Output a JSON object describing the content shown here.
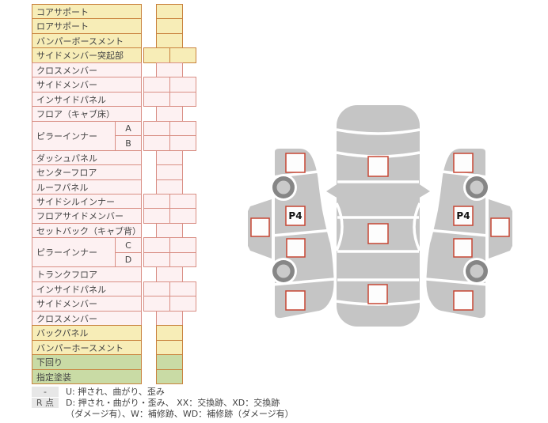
{
  "table": {
    "rows": [
      {
        "label": "コアサポート",
        "tone": "yellow",
        "cells": 1
      },
      {
        "label": "ロアサポート",
        "tone": "yellow",
        "cells": 1
      },
      {
        "label": "バンパーボースメント",
        "tone": "yellow",
        "cells": 1
      },
      {
        "label": "サイドメンバー突起部",
        "tone": "yellow",
        "cells": 2
      },
      {
        "label": "クロスメンバー",
        "tone": "pink",
        "cells": 1
      },
      {
        "label": "サイドメンバー",
        "tone": "pink",
        "cells": 2
      },
      {
        "label": "インサイドパネル",
        "tone": "pink",
        "cells": 2
      },
      {
        "label": "フロア（キャブ床）",
        "tone": "pink",
        "cells": 1
      },
      {
        "label": "ピラーインナー",
        "tone": "pink",
        "cells": 2,
        "sub": "A",
        "group": "start"
      },
      {
        "label": "",
        "tone": "pink",
        "cells": 2,
        "sub": "B",
        "group": "end"
      },
      {
        "label": "ダッシュパネル",
        "tone": "pink",
        "cells": 1
      },
      {
        "label": "センターフロア",
        "tone": "pink",
        "cells": 1
      },
      {
        "label": "ルーフパネル",
        "tone": "pink",
        "cells": 1
      },
      {
        "label": "サイドシルインナー",
        "tone": "pink",
        "cells": 2
      },
      {
        "label": "フロアサイドメンバー",
        "tone": "pink",
        "cells": 2
      },
      {
        "label": "セットバック（キャブ背）",
        "tone": "pink",
        "cells": 1
      },
      {
        "label": "ピラーインナー",
        "tone": "pink",
        "cells": 2,
        "sub": "C",
        "group": "start"
      },
      {
        "label": "",
        "tone": "pink",
        "cells": 2,
        "sub": "D",
        "group": "end"
      },
      {
        "label": "トランクフロア",
        "tone": "pink",
        "cells": 1
      },
      {
        "label": "インサイドパネル",
        "tone": "pink",
        "cells": 2
      },
      {
        "label": "サイドメンバー",
        "tone": "pink",
        "cells": 2
      },
      {
        "label": "クロスメンバー",
        "tone": "pink",
        "cells": 1
      },
      {
        "label": "バックパネル",
        "tone": "yellow",
        "cells": 1
      },
      {
        "label": "バンパーホースメント",
        "tone": "yellow",
        "cells": 1
      },
      {
        "label": "下回り",
        "tone": "green",
        "cells": 1
      },
      {
        "label": "指定塗装",
        "tone": "green",
        "cells": 1
      }
    ]
  },
  "legend": {
    "badge_u": "-",
    "text_u": "U: 押され、曲がり、歪み",
    "badge_r": "R 点",
    "text_r": "D: 押され・曲がり・歪み、 XX：交換跡、XD：交換跡",
    "text_r2": "（ダメージ有）、W：補修跡、WD：補修跡（ダメージ有）"
  },
  "diagram": {
    "left_code": "P4",
    "right_code": "P4",
    "body_color": "#c5c5c5",
    "marker_fill": "#fdfdfd",
    "marker_border": "#c74634",
    "wheel_ring": "#868686",
    "wheel_hub": "#cacaca"
  }
}
